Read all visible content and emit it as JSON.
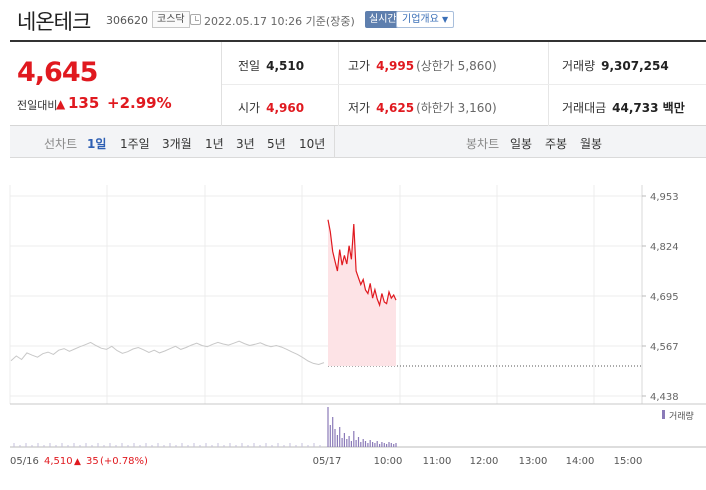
{
  "header": {
    "stock_name": "네온테크",
    "stock_code": "306620",
    "market": "코스닥",
    "timestamp": "2022.05.17 10:26 기준(장중)",
    "realtime_label": "실시간",
    "company_label": "기업개요"
  },
  "summary": {
    "price": "4,645",
    "diff_label": "전일대비",
    "diff_value": "135",
    "diff_rate": "+2.99%",
    "prev_close_label": "전일",
    "prev_close": "4,510",
    "high_label": "고가",
    "high": "4,995",
    "upper_limit": "(상한가 5,860)",
    "volume_label": "거래량",
    "volume": "9,307,254",
    "open_label": "시가",
    "open": "4,960",
    "low_label": "저가",
    "low": "4,625",
    "lower_limit": "(하한가 3,160)",
    "amount_label": "거래대금",
    "amount": "44,733 백만"
  },
  "period_bar": {
    "line_label": "선차트",
    "line_items": [
      "1일",
      "1주일",
      "3개월",
      "1년",
      "3년",
      "5년",
      "10년"
    ],
    "active": "1일",
    "candle_label": "봉차트",
    "candle_items": [
      "일봉",
      "주봉",
      "월봉"
    ]
  },
  "colors": {
    "up": "#e0191f",
    "accent": "#2e5fb3",
    "prev_day_line": "#c8c8c8",
    "volume_bar": "#8a7ab8"
  },
  "chart_data": {
    "type": "line",
    "y_ticks": [
      "4,953",
      "4,824",
      "4,695",
      "4,567",
      "4,438"
    ],
    "ylim": [
      4438,
      4953
    ],
    "x_tick_labels": [
      "05/16",
      "05/17",
      "10:00",
      "11:00",
      "12:00",
      "13:00",
      "14:00",
      "15:00"
    ],
    "volume_legend": "거래량",
    "prev_day_summary": {
      "date": "05/16",
      "price": "4,510",
      "change": "35",
      "rate": "(+0.78%)"
    },
    "series": [
      {
        "values_prev_day": [
          4529,
          4541,
          4532,
          4549,
          4543,
          4538,
          4547,
          4551,
          4545,
          4556,
          4560,
          4553,
          4559,
          4565,
          4570,
          4576,
          4568,
          4561,
          4558,
          4566,
          4555,
          4548,
          4552,
          4559,
          4563,
          4557,
          4550,
          4556,
          4549,
          4554,
          4560,
          4566,
          4558,
          4563,
          4569,
          4574,
          4568,
          4565,
          4571,
          4576,
          4572,
          4569,
          4574,
          4579,
          4573,
          4568,
          4571,
          4575,
          4569,
          4565,
          4568,
          4564,
          4558,
          4551,
          4545,
          4537,
          4528,
          4522,
          4519,
          4524
        ],
        "values_today": [
          4892,
          4861,
          4810,
          4785,
          4760,
          4815,
          4775,
          4800,
          4778,
          4825,
          4790,
          4881,
          4760,
          4742,
          4725,
          4738,
          4711,
          4702,
          4728,
          4690,
          4712,
          4688,
          4672,
          4702,
          4680,
          4676,
          4706,
          4690,
          4698,
          4685
        ]
      }
    ],
    "prev_close": 4510
  }
}
